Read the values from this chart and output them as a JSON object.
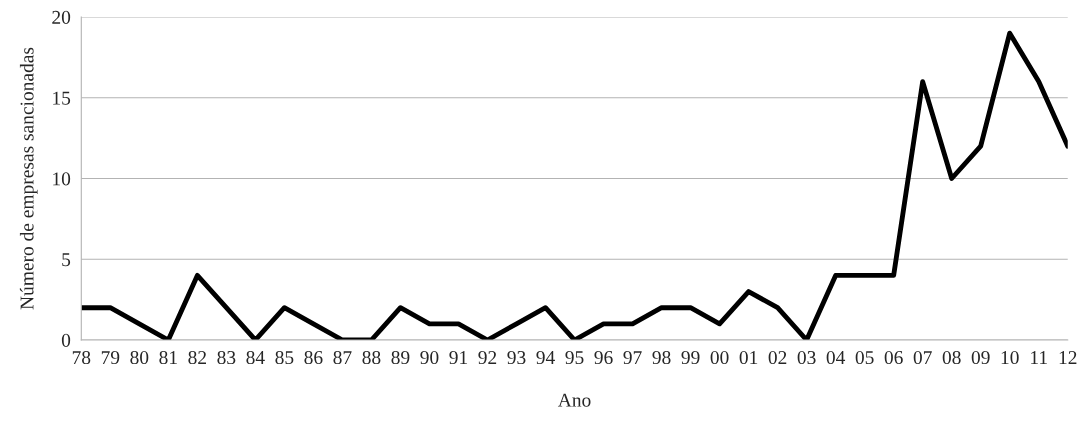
{
  "chart_data": {
    "type": "line",
    "xlabel": "Ano",
    "ylabel": "Número de empresas sancionadas",
    "categories": [
      "78",
      "79",
      "80",
      "81",
      "82",
      "83",
      "84",
      "85",
      "86",
      "87",
      "88",
      "89",
      "90",
      "91",
      "92",
      "93",
      "94",
      "95",
      "96",
      "97",
      "98",
      "99",
      "00",
      "01",
      "02",
      "03",
      "04",
      "05",
      "06",
      "07",
      "08",
      "09",
      "10",
      "11",
      "12"
    ],
    "series": [
      {
        "color": "#000000",
        "values": [
          2,
          2,
          1,
          0,
          4,
          2,
          0,
          2,
          1,
          0,
          0,
          2,
          1,
          1,
          0,
          1,
          2,
          0,
          1,
          1,
          2,
          2,
          1,
          3,
          2,
          0,
          4,
          4,
          4,
          16,
          10,
          12,
          19,
          16,
          12
        ]
      }
    ],
    "ylim": [
      0,
      20
    ],
    "yticks": [
      0,
      5,
      10,
      15,
      20
    ],
    "grid": "y",
    "marker": "none",
    "line_style": "solid"
  }
}
